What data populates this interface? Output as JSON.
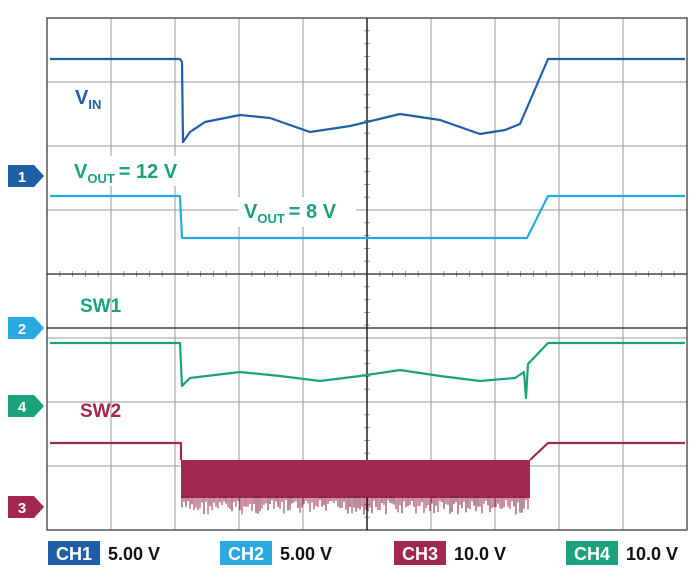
{
  "labels": {
    "vin": {
      "main": "V",
      "sub": "IN"
    },
    "vout_high": {
      "main": "V",
      "sub": "OUT",
      "rest": "= 12 V"
    },
    "vout_low": {
      "main": "V",
      "sub": "OUT",
      "rest": "= 8 V"
    },
    "sw1": "SW1",
    "sw2": "SW2"
  },
  "channel_markers": [
    "1",
    "2",
    "4",
    "3"
  ],
  "channels": [
    {
      "name": "CH1",
      "scale": "5.00 V"
    },
    {
      "name": "CH2",
      "scale": "5.00 V"
    },
    {
      "name": "CH3",
      "scale": "10.0 V"
    },
    {
      "name": "CH4",
      "scale": "10.0 V"
    }
  ]
}
